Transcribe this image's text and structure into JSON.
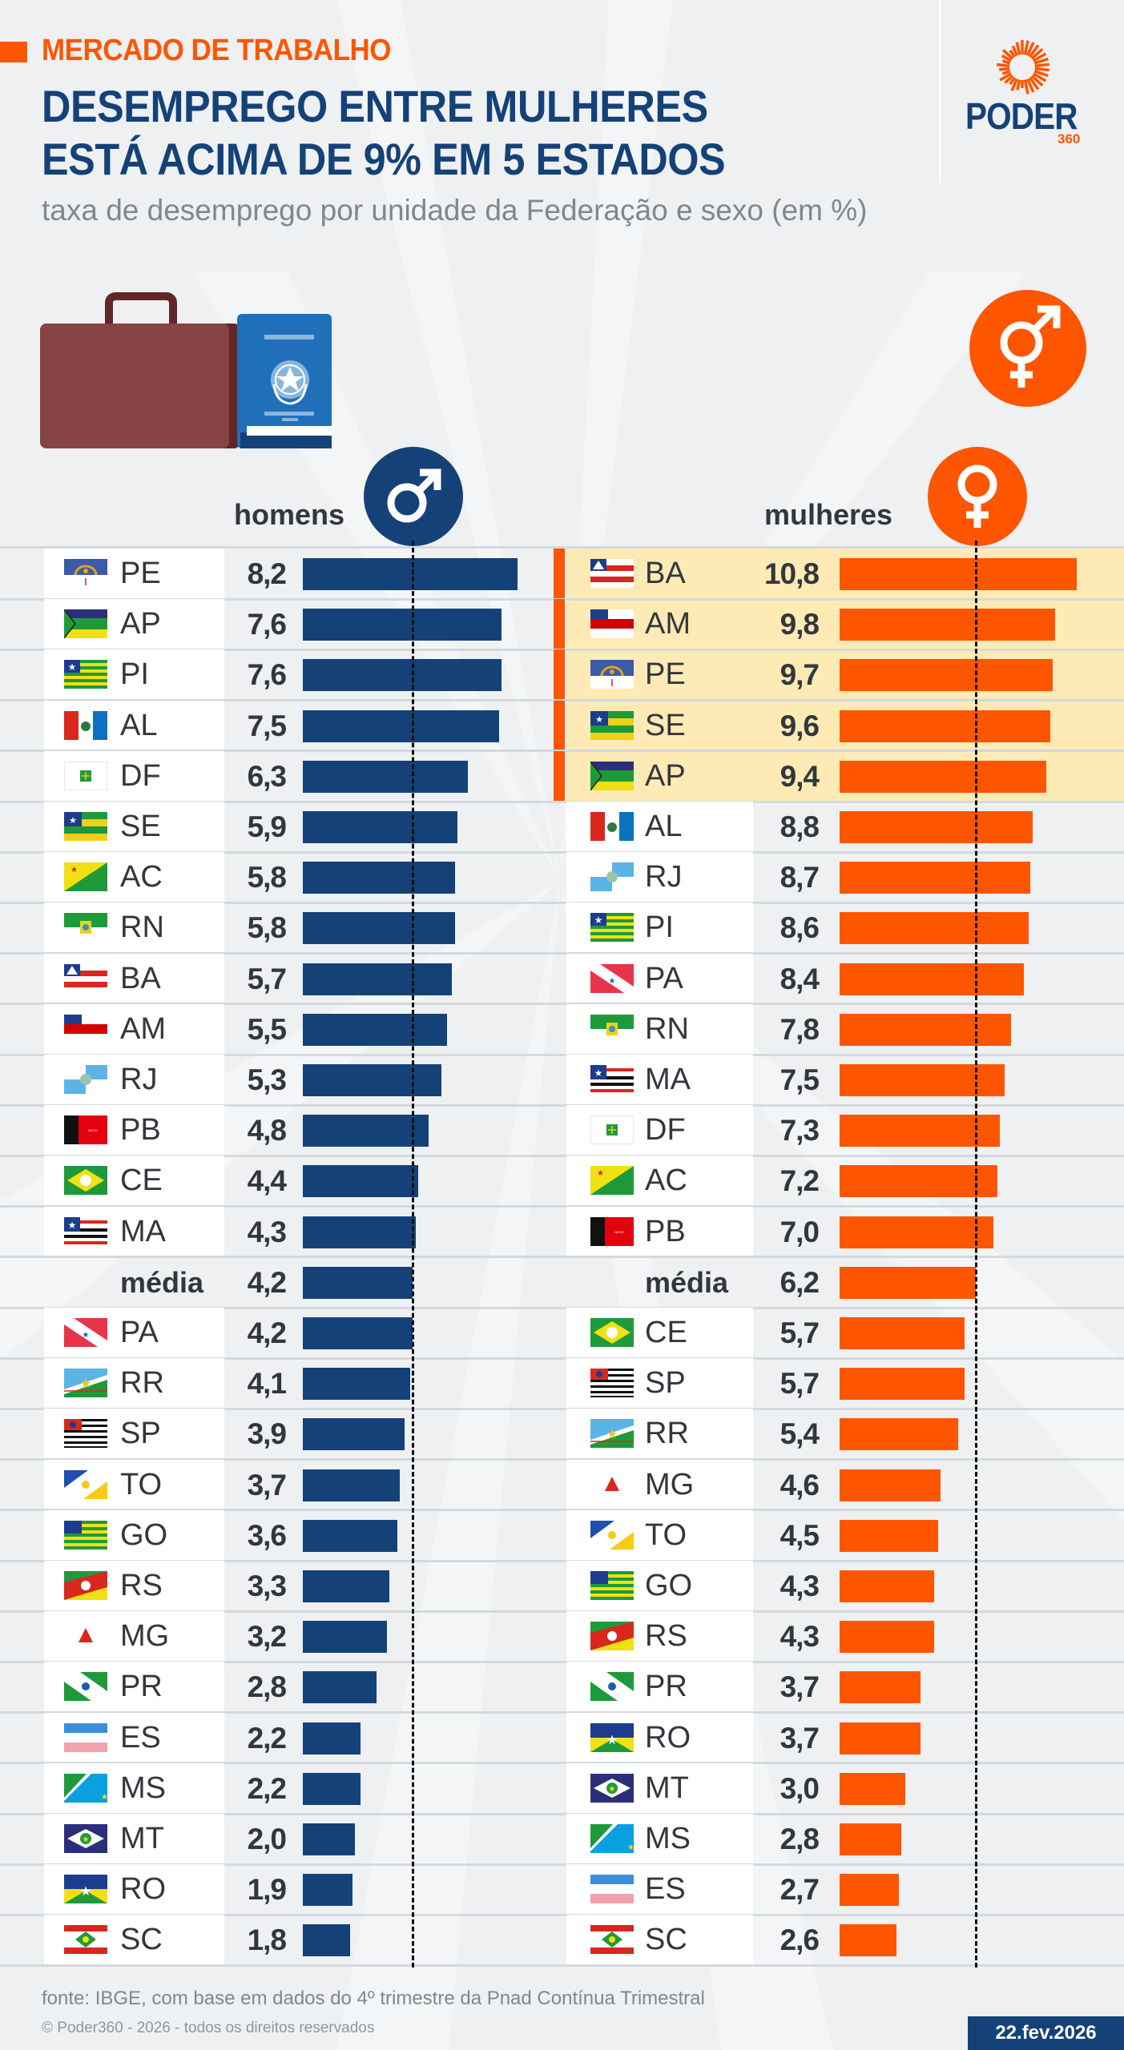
{
  "header": {
    "kicker": "MERCADO DE TRABALHO",
    "title_line1": "DESEMPREGO ENTRE MULHERES",
    "title_line2": "ESTÁ ACIMA DE 9% EM 5 ESTADOS",
    "subtitle": "taxa de desemprego por unidade da Federação e sexo (em %)"
  },
  "logo": {
    "name": "PODER",
    "suffix": "360",
    "icon": "sun-rays-icon"
  },
  "icons": {
    "illustration": "briefcase-and-work-card-icon",
    "gender_badge": "transgender-symbol-icon",
    "men": "male-symbol-icon",
    "women": "female-symbol-icon"
  },
  "colors": {
    "men_bar": "#144278",
    "women_bar": "#fe5500",
    "highlight_bg": "#fdeab5",
    "accent": "#fe5500",
    "title": "#144278"
  },
  "chart_data": [
    {
      "type": "bar",
      "orientation": "horizontal",
      "title": "homens",
      "categories": [
        "PE",
        "AP",
        "PI",
        "AL",
        "DF",
        "SE",
        "AC",
        "RN",
        "BA",
        "AM",
        "RJ",
        "PB",
        "CE",
        "MA",
        "média",
        "PA",
        "RR",
        "SP",
        "TO",
        "GO",
        "RS",
        "MG",
        "PR",
        "ES",
        "MS",
        "MT",
        "RO",
        "SC"
      ],
      "values": [
        8.2,
        7.6,
        7.6,
        7.5,
        6.3,
        5.9,
        5.8,
        5.8,
        5.7,
        5.5,
        5.3,
        4.8,
        4.4,
        4.3,
        4.2,
        4.2,
        4.1,
        3.9,
        3.7,
        3.6,
        3.3,
        3.2,
        2.8,
        2.2,
        2.2,
        2.0,
        1.9,
        1.8
      ],
      "labels": [
        "8,2",
        "7,6",
        "7,6",
        "7,5",
        "6,3",
        "5,9",
        "5,8",
        "5,8",
        "5,7",
        "5,5",
        "5,3",
        "4,8",
        "4,4",
        "4,3",
        "4,2",
        "4,2",
        "4,1",
        "3,9",
        "3,7",
        "3,6",
        "3,3",
        "3,2",
        "2,8",
        "2,2",
        "2,2",
        "2,0",
        "1,9",
        "1,8"
      ],
      "mean": 4.2,
      "mean_label": "média",
      "highlighted": [],
      "xlim": [
        0,
        8.2
      ],
      "unit": "%"
    },
    {
      "type": "bar",
      "orientation": "horizontal",
      "title": "mulheres",
      "categories": [
        "BA",
        "AM",
        "PE",
        "SE",
        "AP",
        "AL",
        "RJ",
        "PI",
        "PA",
        "RN",
        "MA",
        "DF",
        "AC",
        "PB",
        "média",
        "CE",
        "SP",
        "RR",
        "MG",
        "TO",
        "GO",
        "RS",
        "PR",
        "RO",
        "MT",
        "MS",
        "ES",
        "SC"
      ],
      "values": [
        10.8,
        9.8,
        9.7,
        9.6,
        9.4,
        8.8,
        8.7,
        8.6,
        8.4,
        7.8,
        7.5,
        7.3,
        7.2,
        7.0,
        6.2,
        5.7,
        5.7,
        5.4,
        4.6,
        4.5,
        4.3,
        4.3,
        3.7,
        3.7,
        3.0,
        2.8,
        2.7,
        2.6
      ],
      "labels": [
        "10,8",
        "9,8",
        "9,7",
        "9,6",
        "9,4",
        "8,8",
        "8,7",
        "8,6",
        "8,4",
        "7,8",
        "7,5",
        "7,3",
        "7,2",
        "7,0",
        "6,2",
        "5,7",
        "5,7",
        "5,4",
        "4,6",
        "4,5",
        "4,3",
        "4,3",
        "3,7",
        "3,7",
        "3,0",
        "2,8",
        "2,7",
        "2,6"
      ],
      "mean": 6.2,
      "mean_label": "média",
      "highlighted": [
        "BA",
        "AM",
        "PE",
        "SE",
        "AP"
      ],
      "xlim": [
        0,
        10.8
      ],
      "unit": "%"
    }
  ],
  "footer": {
    "source": "fonte: IBGE, com base em dados do 4º trimestre da Pnad Contínua Trimestral",
    "copyright": "© Poder360 - 2026 - todos os direitos reservados",
    "date": "22.fev.2026"
  }
}
